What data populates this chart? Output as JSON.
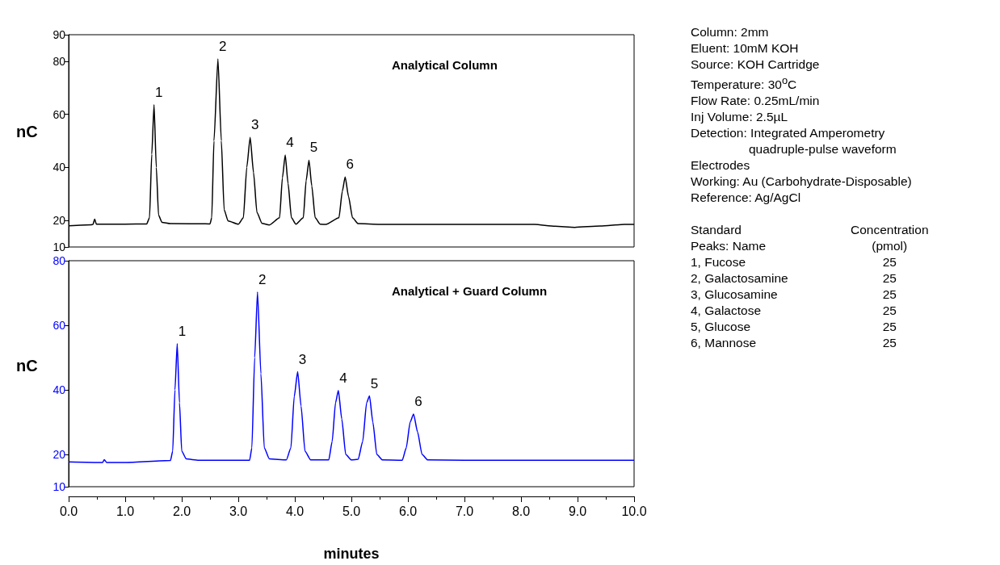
{
  "chart_data": [
    {
      "type": "line",
      "ylabel": "nC",
      "tick_labels": "y",
      "xlim": [
        0,
        10
      ],
      "ylim": [
        10,
        90
      ],
      "yticks": [
        10,
        20,
        40,
        60,
        80,
        90
      ],
      "annotations": [
        "Analytical Column",
        {
          "text": "1",
          "x": 1.51,
          "y": 63.6
        },
        {
          "text": "2",
          "x": 2.64,
          "y": 80.9
        },
        {
          "text": "3",
          "x": 3.21,
          "y": 51.3
        },
        {
          "text": "4",
          "x": 3.83,
          "y": 44.7
        },
        {
          "text": "5",
          "x": 4.25,
          "y": 42.7
        },
        {
          "text": "6",
          "x": 4.89,
          "y": 36.4
        }
      ],
      "series": [
        {
          "color": "#000000",
          "x": [
            0,
            0.4,
            0.43,
            0.46,
            0.49,
            1.0,
            1.38,
            1.43,
            1.47,
            1.51,
            1.55,
            1.59,
            1.65,
            1.8,
            2.5,
            2.53,
            2.57,
            2.64,
            2.7,
            2.75,
            2.82,
            3.0,
            3.09,
            3.15,
            3.21,
            3.27,
            3.33,
            3.42,
            3.55,
            3.73,
            3.78,
            3.83,
            3.88,
            3.94,
            4.02,
            4.15,
            4.2,
            4.25,
            4.3,
            4.36,
            4.45,
            4.55,
            4.78,
            4.84,
            4.89,
            4.95,
            5.02,
            5.12,
            5.5,
            8.24,
            8.6,
            8.95,
            9.4,
            9.83,
            10
          ],
          "values": [
            18.0,
            18.4,
            18.5,
            20.5,
            18.6,
            18.6,
            18.7,
            21,
            45,
            63.6,
            40,
            22,
            19.3,
            18.8,
            18.7,
            21,
            50,
            80.9,
            50,
            24,
            19.8,
            18.6,
            21,
            40,
            51.3,
            38,
            23,
            18.9,
            18.3,
            21,
            36,
            44.7,
            34,
            21,
            18.6,
            21,
            35,
            42.7,
            33,
            21,
            18.6,
            18.5,
            21,
            31,
            36.4,
            29,
            21,
            18.8,
            18.5,
            18.5,
            17.8,
            17.4,
            17.9,
            18.5,
            18.5
          ]
        }
      ]
    },
    {
      "type": "line",
      "ylabel": "nC",
      "xlabel": "minutes",
      "xlim": [
        0,
        10
      ],
      "ylim": [
        10,
        80
      ],
      "yticks": [
        10,
        20,
        40,
        60,
        80
      ],
      "xticks": [
        {
          "value": 0,
          "label": "0.0"
        },
        {
          "value": 1,
          "label": "1.0"
        },
        {
          "value": 2,
          "label": "2.0"
        },
        {
          "value": 3,
          "label": "3.0"
        },
        {
          "value": 4,
          "label": "4.0"
        },
        {
          "value": 5,
          "label": "5.0"
        },
        {
          "value": 6,
          "label": "6.0"
        },
        {
          "value": 7,
          "label": "7.0"
        },
        {
          "value": 8,
          "label": "8.0"
        },
        {
          "value": 9,
          "label": "9.0"
        },
        {
          "value": 10,
          "label": "10.0"
        }
      ],
      "annotations": [
        "Analytical + Guard Column",
        {
          "text": "1",
          "x": 1.92,
          "y": 54.3
        },
        {
          "text": "2",
          "x": 3.34,
          "y": 70.3
        },
        {
          "text": "3",
          "x": 4.05,
          "y": 45.6
        },
        {
          "text": "4",
          "x": 4.77,
          "y": 39.8
        },
        {
          "text": "5",
          "x": 5.32,
          "y": 38.1
        },
        {
          "text": "6",
          "x": 6.1,
          "y": 32.5
        }
      ],
      "series": [
        {
          "color": "#0000ff",
          "x": [
            0,
            0.6,
            0.63,
            0.67,
            1.0,
            1.8,
            1.84,
            1.88,
            1.92,
            1.96,
            2.0,
            2.08,
            2.3,
            3.2,
            3.24,
            3.29,
            3.34,
            3.4,
            3.46,
            3.55,
            3.85,
            3.93,
            3.99,
            4.05,
            4.11,
            4.18,
            4.28,
            4.6,
            4.66,
            4.72,
            4.77,
            4.83,
            4.9,
            5.0,
            5.12,
            5.2,
            5.27,
            5.32,
            5.38,
            5.45,
            5.55,
            5.9,
            5.97,
            6.04,
            6.1,
            6.17,
            6.25,
            6.35,
            7,
            10
          ],
          "values": [
            17.7,
            17.5,
            18.4,
            17.5,
            17.5,
            18.1,
            21,
            40,
            54.3,
            36,
            21,
            18.6,
            18.2,
            18.2,
            22,
            50,
            70.3,
            45,
            22,
            18.6,
            18.3,
            22,
            38,
            45.6,
            35,
            21,
            18.3,
            18.3,
            24,
            36,
            39.8,
            31,
            20,
            18.3,
            18.5,
            24,
            36,
            38.1,
            30,
            20,
            18.3,
            18.2,
            22,
            30,
            32.5,
            27,
            20,
            18.3,
            18.2,
            18.2
          ]
        }
      ]
    },
    {
      "type": "other",
      "annotations": [
        "Column: 2mm",
        "Eluent: 10mM KOH",
        "Source: KOH Cartridge",
        "Temperature: 30$^{o}$C",
        "Flow Rate: 0.25mL/min",
        "Inj Volume: 2.5µL",
        "Detection: Integrated Amperometry",
        "quadruple-pulse waveform",
        "Electrodes",
        "Working: Au (Carbohydrate-Disposable)",
        "Reference: Ag/AgCl",
        "Standard",
        "Concentration",
        "Peaks: Name",
        "(pmol)",
        "1, Fucose",
        "25",
        "2, Galactosamine",
        "25",
        "3, Glucosamine",
        "25",
        "4, Galactose",
        "25",
        "5, Glucose",
        "25",
        "6, Mannose",
        "25"
      ]
    }
  ]
}
